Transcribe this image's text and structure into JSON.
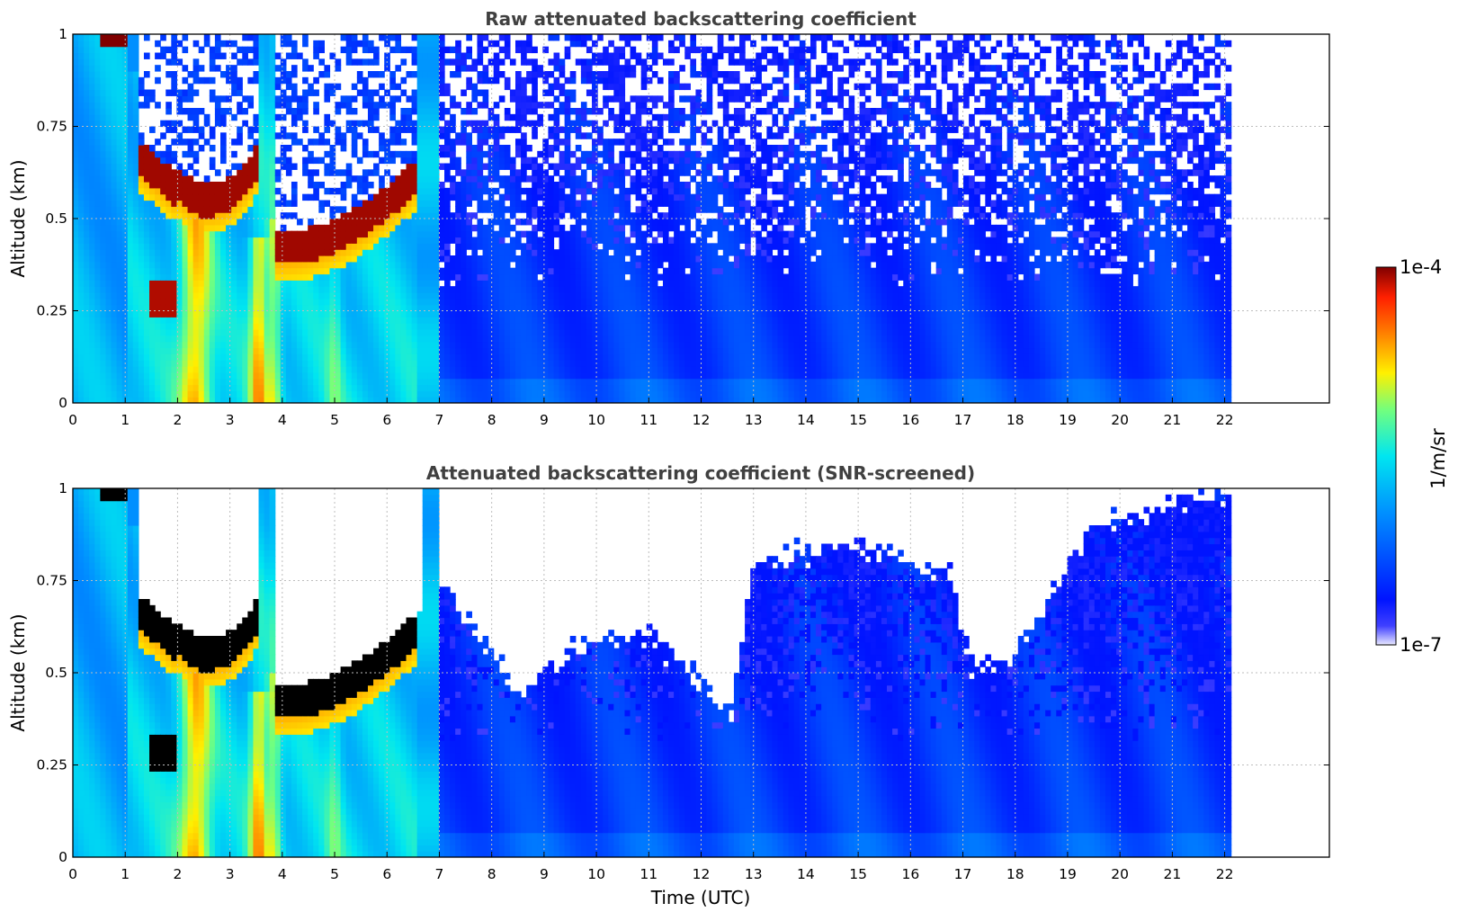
{
  "colors": {
    "jet_low": "#e8e8ff",
    "jet_blue": "#0014ff",
    "jet_cyan": "#00e6f0",
    "jet_yellow": "#fff000",
    "jet_red": "#ff2000",
    "jet_high": "#800000",
    "screened_saturation": "#000000",
    "masked": "#ffffff",
    "grid": "#bdbdbd",
    "title_text": "#404040"
  },
  "chart_data": [
    {
      "type": "heatmap",
      "title": "Raw attenuated backscattering coefficient",
      "xlabel": "",
      "ylabel": "Altitude (km)",
      "xlim": [
        0,
        24
      ],
      "ylim": [
        0,
        1
      ],
      "xticks": [
        "0",
        "1",
        "2",
        "3",
        "4",
        "5",
        "6",
        "7",
        "8",
        "9",
        "10",
        "11",
        "12",
        "13",
        "14",
        "15",
        "16",
        "17",
        "18",
        "19",
        "20",
        "21",
        "22"
      ],
      "yticks": [
        "0",
        "0.25",
        "0.5",
        "0.75",
        "1"
      ],
      "grid": true,
      "data_end_time": 22.1,
      "scale": "log",
      "value_range": [
        1e-07,
        0.0001
      ],
      "features": [
        {
          "name": "cloud_layer_early",
          "t_start": 1.3,
          "t_end": 2.6,
          "altitude_km": [
            0.55,
            0.7
          ]
        },
        {
          "name": "cloud_layer_main",
          "t_start": 2.0,
          "t_end": 3.4,
          "altitude_km": [
            0.5,
            0.6
          ]
        },
        {
          "name": "rising_cloud_layer",
          "t_start": 3.9,
          "t_end": 6.6,
          "altitude_km": [
            0.4,
            0.65
          ]
        },
        {
          "name": "low_cloud",
          "t_start": 1.5,
          "t_end": 2.0,
          "altitude_km": [
            0.22,
            0.32
          ]
        },
        {
          "name": "precipitation_shafts",
          "t_start": 1.9,
          "t_end": 4.2,
          "altitude_km": [
            0.0,
            0.5
          ]
        },
        {
          "name": "clear_noisy_signal",
          "t_start": 7.0,
          "t_end": 22.1,
          "altitude_km": [
            0.0,
            1.0
          ]
        }
      ]
    },
    {
      "type": "heatmap",
      "title": "Attenuated backscattering coefficient (SNR-screened)",
      "xlabel": "Time (UTC)",
      "ylabel": "Altitude (km)",
      "xlim": [
        0,
        24
      ],
      "ylim": [
        0,
        1
      ],
      "xticks": [
        "0",
        "1",
        "2",
        "3",
        "4",
        "5",
        "6",
        "7",
        "8",
        "9",
        "10",
        "11",
        "12",
        "13",
        "14",
        "15",
        "16",
        "17",
        "18",
        "19",
        "20",
        "21",
        "22"
      ],
      "yticks": [
        "0",
        "0.25",
        "0.5",
        "0.75",
        "1"
      ],
      "grid": true,
      "data_end_time": 22.1,
      "scale": "log",
      "value_range": [
        1e-07,
        0.0001
      ],
      "screened_above_km": [
        {
          "t": 7.0,
          "km": 0.75
        },
        {
          "t": 8.5,
          "km": 0.45
        },
        {
          "t": 10.0,
          "km": 0.6
        },
        {
          "t": 11.0,
          "km": 0.6
        },
        {
          "t": 12.6,
          "km": 0.4
        },
        {
          "t": 13.0,
          "km": 0.8
        },
        {
          "t": 15.0,
          "km": 0.85
        },
        {
          "t": 16.8,
          "km": 0.75
        },
        {
          "t": 17.2,
          "km": 0.5
        },
        {
          "t": 18.0,
          "km": 0.55
        },
        {
          "t": 19.5,
          "km": 0.9
        },
        {
          "t": 22.1,
          "km": 1.0
        }
      ]
    }
  ],
  "colorbar": {
    "label": "1/m/sr",
    "max_label": "1e-4",
    "min_label": "1e-7",
    "scale": "log"
  }
}
